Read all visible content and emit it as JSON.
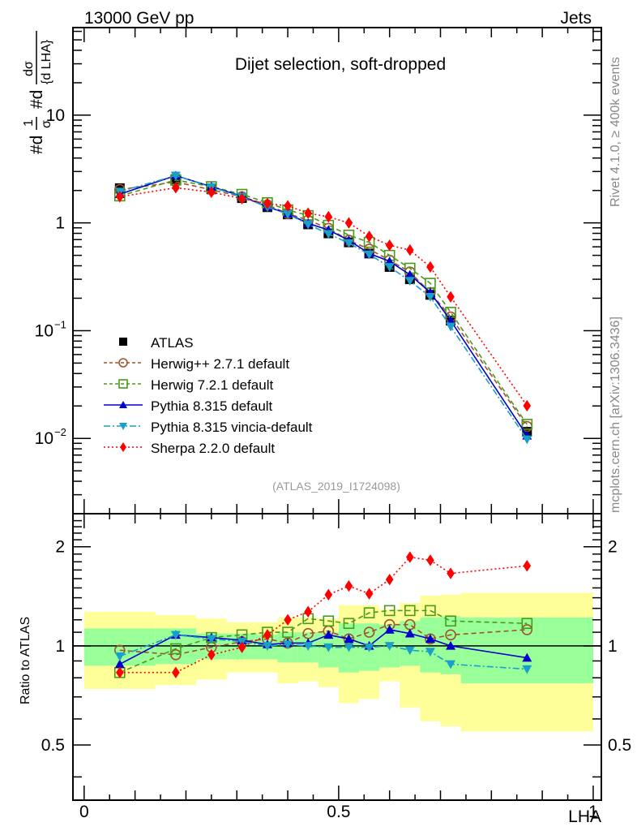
{
  "header": {
    "left_label": "13000 GeV pp",
    "right_label": "Jets"
  },
  "side_text": {
    "rivet": "Rivet 4.1.0, ≥ 400k events",
    "mcplots": "mcplots.cern.ch [arXiv:1306.3436]"
  },
  "chart_data": [
    {
      "panel": "main",
      "type": "line",
      "title": "Dijet selection, soft-dropped",
      "analysis_id": "(ATLAS_2019_I1724098)",
      "ylabel": "#d¹⁄σ #d dσ/{d LHA}",
      "ylabel_parts": {
        "prefix": "#d",
        "frac1_num": "1",
        "frac1_den": "σ",
        "mid": "#d",
        "frac2_num": "dσ",
        "frac2_den": "{d LHA}"
      },
      "yscale": "log",
      "ylim": [
        0.002,
        65
      ],
      "xlim": [
        -0.022,
        1.016
      ],
      "yticks": [
        {
          "value": 0.01,
          "base": "10",
          "exp": "−2"
        },
        {
          "value": 0.1,
          "base": "10",
          "exp": "−1"
        },
        {
          "value": 1,
          "base": "1",
          "exp": ""
        },
        {
          "value": 10,
          "base": "10",
          "exp": ""
        }
      ],
      "legend_position": "bottom-left",
      "x": [
        0.07,
        0.18,
        0.25,
        0.31,
        0.36,
        0.4,
        0.44,
        0.48,
        0.52,
        0.56,
        0.6,
        0.64,
        0.68,
        0.72,
        0.87
      ],
      "series": [
        {
          "name": "ATLAS",
          "color": "#000000",
          "marker": "square-filled",
          "line": "none",
          "values": [
            2.1,
            2.55,
            2.05,
            1.7,
            1.4,
            1.2,
            0.97,
            0.8,
            0.66,
            0.52,
            0.39,
            0.3,
            0.215,
            0.124,
            0.0115
          ]
        },
        {
          "name": "Herwig++ 2.7.1 default",
          "color": "#a0522d",
          "marker": "circle-open",
          "line": "dashed",
          "values": [
            2.04,
            2.4,
            2.03,
            1.75,
            1.47,
            1.22,
            1.06,
            0.89,
            0.69,
            0.57,
            0.45,
            0.35,
            0.226,
            0.134,
            0.0129
          ]
        },
        {
          "name": "Herwig 7.2.1 default",
          "color": "#4a9a1a",
          "marker": "square-open",
          "line": "dashed",
          "values": [
            1.78,
            2.5,
            2.17,
            1.84,
            1.54,
            1.32,
            1.17,
            0.95,
            0.77,
            0.66,
            0.5,
            0.38,
            0.275,
            0.148,
            0.0135
          ]
        },
        {
          "name": "Pythia 8.315 default",
          "color": "#0000cc",
          "marker": "triangle-up-filled",
          "line": "solid",
          "values": [
            1.85,
            2.75,
            2.17,
            1.77,
            1.41,
            1.22,
            0.99,
            0.86,
            0.69,
            0.52,
            0.44,
            0.33,
            0.226,
            0.124,
            0.0106
          ]
        },
        {
          "name": "Pythia 8.315 vincia-default",
          "color": "#1a9fc9",
          "marker": "triangle-down-filled",
          "line": "dashdot",
          "values": [
            1.95,
            2.75,
            2.15,
            1.75,
            1.4,
            1.21,
            0.97,
            0.79,
            0.65,
            0.51,
            0.39,
            0.29,
            0.206,
            0.109,
            0.0098
          ]
        },
        {
          "name": "Sherpa 2.2.0 default",
          "color": "#ff0000",
          "marker": "diamond-filled",
          "line": "dotted",
          "values": [
            1.75,
            2.12,
            1.93,
            1.68,
            1.51,
            1.44,
            1.23,
            1.14,
            1.0,
            0.75,
            0.62,
            0.56,
            0.39,
            0.206,
            0.0201
          ]
        }
      ]
    },
    {
      "panel": "ratio",
      "type": "line",
      "ylabel": "Ratio to ATLAS",
      "xlabel": "LHA",
      "yscale": "log",
      "ylim": [
        0.34,
        2.52
      ],
      "xlim": [
        -0.022,
        1.016
      ],
      "yticks": [
        0.5,
        1,
        2
      ],
      "ytick_labels": [
        "0.5",
        "1",
        "2"
      ],
      "xticks": [
        0,
        0.5,
        1
      ],
      "xtick_labels": [
        "0",
        "0.5",
        "1"
      ],
      "bin_edges": [
        0,
        0.14,
        0.22,
        0.28,
        0.34,
        0.38,
        0.42,
        0.46,
        0.5,
        0.54,
        0.58,
        0.62,
        0.66,
        0.7,
        0.74,
        1.0
      ],
      "band_inner": {
        "color": "#99ff99",
        "lower": [
          0.87,
          0.88,
          0.91,
          0.91,
          0.91,
          0.89,
          0.89,
          0.86,
          0.83,
          0.84,
          0.86,
          0.87,
          0.83,
          0.82,
          0.77
        ],
        "upper": [
          1.13,
          1.13,
          1.09,
          1.09,
          1.08,
          1.1,
          1.1,
          1.1,
          1.17,
          1.17,
          1.16,
          1.19,
          1.22,
          1.23,
          1.22
        ]
      },
      "band_outer": {
        "color": "#ffff99",
        "lower": [
          0.74,
          0.76,
          0.79,
          0.83,
          0.83,
          0.77,
          0.78,
          0.75,
          0.67,
          0.69,
          0.78,
          0.65,
          0.59,
          0.57,
          0.55
        ],
        "upper": [
          1.27,
          1.24,
          1.21,
          1.18,
          1.18,
          1.22,
          1.22,
          1.21,
          1.33,
          1.33,
          1.29,
          1.35,
          1.42,
          1.43,
          1.45
        ]
      },
      "x": [
        0.07,
        0.18,
        0.25,
        0.31,
        0.36,
        0.4,
        0.44,
        0.48,
        0.52,
        0.56,
        0.6,
        0.64,
        0.68,
        0.72,
        0.87
      ],
      "series": [
        {
          "name": "Herwig++ 2.7.1 default",
          "color": "#a0522d",
          "marker": "circle-open",
          "line": "dashed",
          "values": [
            0.97,
            0.94,
            0.99,
            1.03,
            1.05,
            1.02,
            1.09,
            1.11,
            1.05,
            1.1,
            1.16,
            1.16,
            1.05,
            1.08,
            1.12
          ]
        },
        {
          "name": "Herwig 7.2.1 default",
          "color": "#4a9a1a",
          "marker": "square-open",
          "line": "dashed",
          "values": [
            0.83,
            0.98,
            1.06,
            1.08,
            1.1,
            1.1,
            1.21,
            1.19,
            1.17,
            1.26,
            1.28,
            1.28,
            1.28,
            1.19,
            1.17
          ]
        },
        {
          "name": "Pythia 8.315 default",
          "color": "#0000cc",
          "marker": "triangle-up-filled",
          "line": "solid",
          "values": [
            0.88,
            1.08,
            1.06,
            1.04,
            1.01,
            1.02,
            1.02,
            1.08,
            1.05,
            1.0,
            1.12,
            1.09,
            1.05,
            1.0,
            0.92
          ]
        },
        {
          "name": "Pythia 8.315 vincia-default",
          "color": "#1a9fc9",
          "marker": "triangle-down-filled",
          "line": "dashdot",
          "values": [
            0.93,
            1.08,
            1.05,
            1.03,
            1.0,
            1.01,
            1.0,
            0.99,
            0.99,
            0.99,
            1.0,
            0.97,
            0.96,
            0.88,
            0.85
          ]
        },
        {
          "name": "Sherpa 2.2.0 default",
          "color": "#ff0000",
          "marker": "diamond-filled",
          "line": "dotted",
          "values": [
            0.83,
            0.83,
            0.94,
            0.99,
            1.08,
            1.2,
            1.27,
            1.43,
            1.52,
            1.44,
            1.59,
            1.86,
            1.82,
            1.66,
            1.75
          ]
        }
      ]
    }
  ]
}
